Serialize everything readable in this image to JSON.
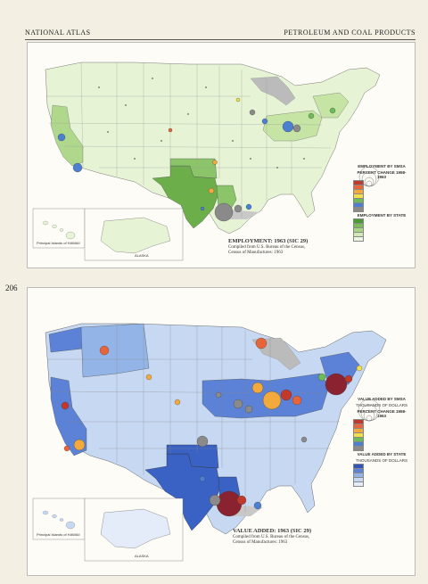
{
  "header": {
    "left": "NATIONAL ATLAS",
    "right": "PETROLEUM AND COAL PRODUCTS"
  },
  "page_number": "206",
  "top_map": {
    "title": "EMPLOYMENT: 1963 (SIC 29)",
    "caption_lines": [
      "Compiled from U.S. Bureau of the Census,",
      "Census of Manufactures: 1963"
    ],
    "legend_employment_smsa": "EMPLOYMENT BY SMSA",
    "legend_percent_change": "PERCENT CHANGE 1958-1963",
    "legend_employment_state": "EMPLOYMENT BY STATE",
    "inset_hawaii": "Principal Islands of HAWAII",
    "inset_alaska": "ALASKA",
    "state_colors": {
      "tx": "#6cae4a",
      "ok": "#8cc46a",
      "mid": "#c6e4a4",
      "light": "#e6f3d4",
      "ca": "#b0d88c"
    }
  },
  "bottom_map": {
    "title": "VALUE ADDED: 1963 (SIC 29)",
    "caption_lines": [
      "Compiled from U.S. Bureau of the Census,",
      "Census of Manufactures: 1963"
    ],
    "legend_value_smsa": "VALUE ADDED BY SMSA",
    "legend_value_smsa_sub": "THOUSANDS OF DOLLARS",
    "legend_percent_change": "PERCENT CHANGE 1958-1963",
    "legend_value_state": "VALUE ADDED BY STATE",
    "legend_value_state_sub": "THOUSANDS OF DOLLARS",
    "inset_hawaii": "Principal Islands of HAWAII",
    "inset_alaska": "ALASKA",
    "state_colors": {
      "tx": "#3a62c4",
      "dark": "#5b82d6",
      "mid": "#93b4e6",
      "light": "#c7d9f2",
      "pale": "#e3ecf8"
    }
  },
  "percent_change_colors": [
    "#c0392b",
    "#e8643a",
    "#f3a93b",
    "#f2e04a",
    "#6dbb58",
    "#4c7fcf",
    "#8a8a8a"
  ],
  "green_scale": [
    "#4e9a32",
    "#7cbc56",
    "#a8d484",
    "#cfe8b4",
    "#ecf5e0"
  ],
  "blue_scale": [
    "#2f56b8",
    "#5b82d6",
    "#93b4e6",
    "#c7d9f2",
    "#e3ecf8"
  ]
}
